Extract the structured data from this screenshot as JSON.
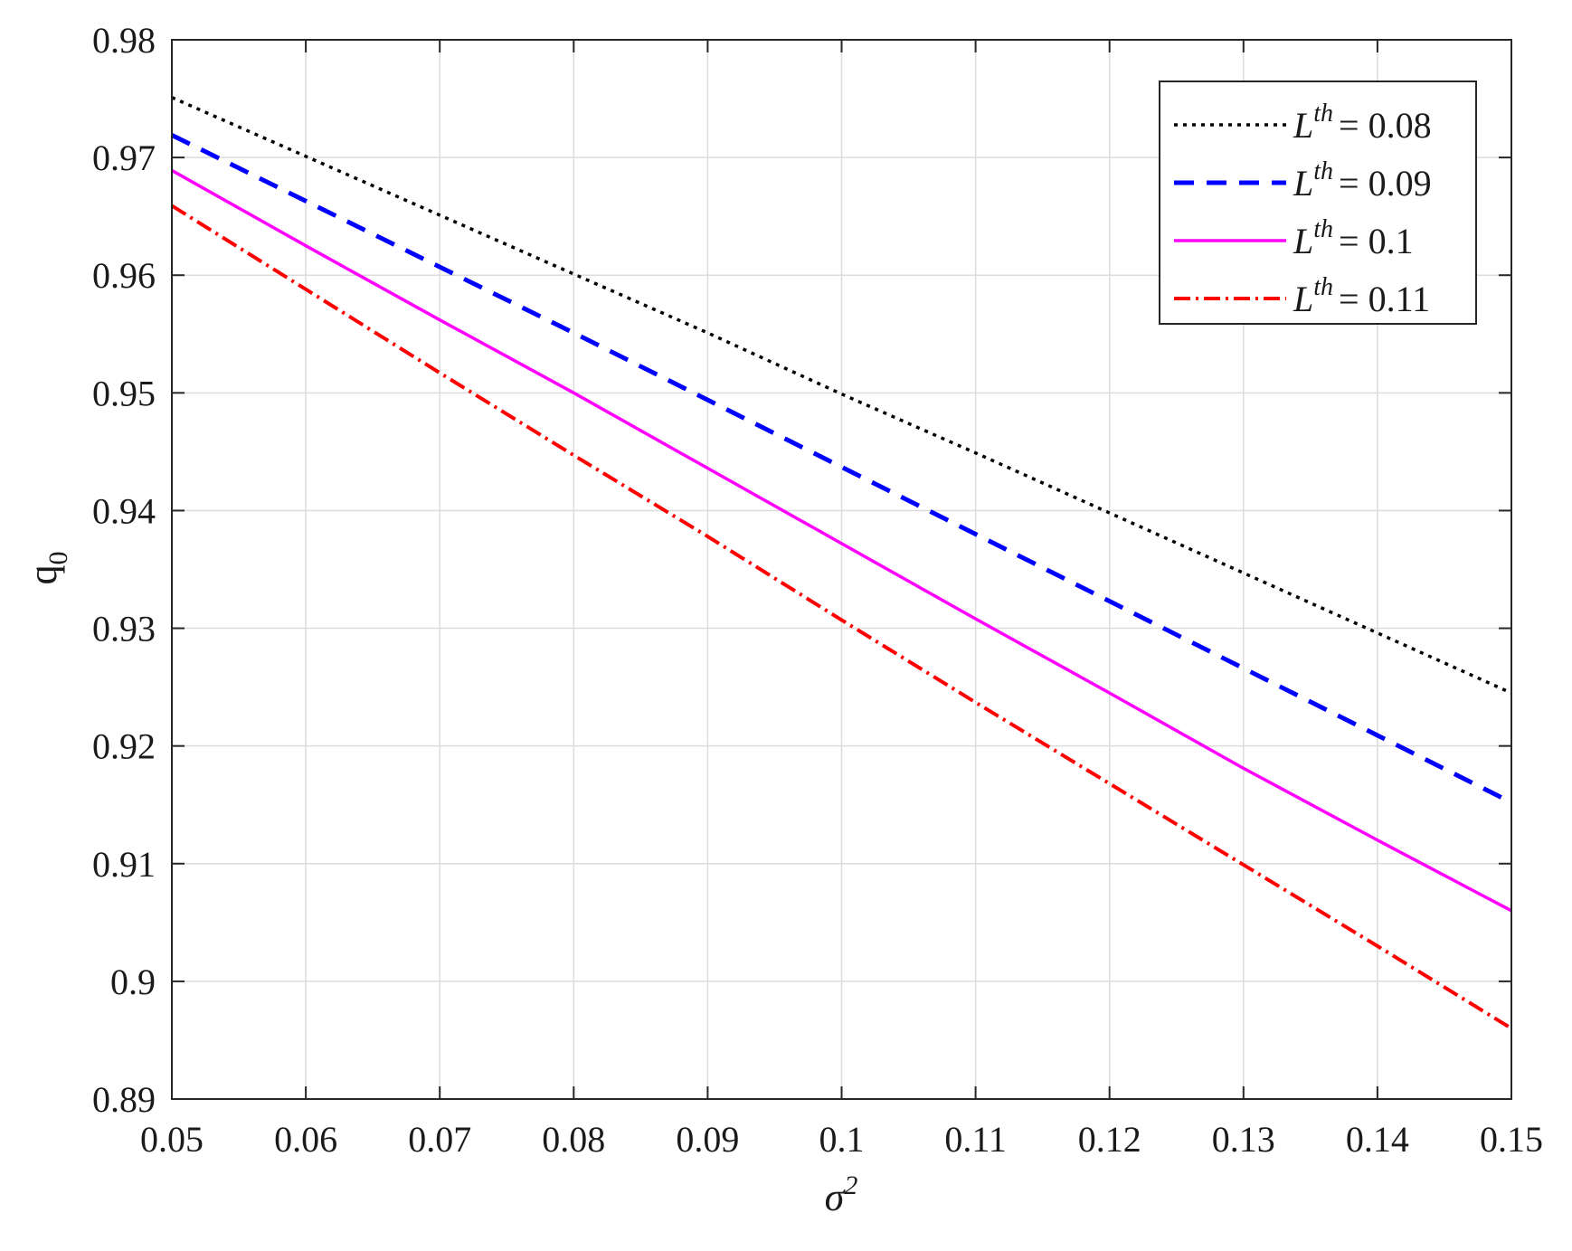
{
  "chart_data": {
    "type": "line",
    "xlabel": "σ",
    "xlabel_superscript": "2",
    "ylabel": "q",
    "ylabel_subscript": "0",
    "xlim": [
      0.05,
      0.15
    ],
    "ylim": [
      0.89,
      0.98
    ],
    "x_ticks": [
      "0.05",
      "0.06",
      "0.07",
      "0.08",
      "0.09",
      "0.1",
      "0.11",
      "0.12",
      "0.13",
      "0.14",
      "0.15"
    ],
    "y_ticks": [
      "0.89",
      "0.9",
      "0.91",
      "0.92",
      "0.93",
      "0.94",
      "0.95",
      "0.96",
      "0.97",
      "0.98"
    ],
    "grid": true,
    "legend_position": "top-right",
    "legend_var": "L",
    "legend_sup": "th",
    "x": [
      0.05,
      0.06,
      0.07,
      0.08,
      0.09,
      0.1,
      0.11,
      0.12,
      0.13,
      0.14,
      0.15
    ],
    "series": [
      {
        "name": "= 0.08",
        "color": "#000000",
        "style": "dotted",
        "values": [
          0.9751,
          0.9701,
          0.9651,
          0.9601,
          0.9551,
          0.9499,
          0.9449,
          0.9398,
          0.9347,
          0.9296,
          0.9245
        ]
      },
      {
        "name": "= 0.09",
        "color": "#0000ff",
        "style": "dashed",
        "values": [
          0.9719,
          0.9663,
          0.9607,
          0.9551,
          0.9494,
          0.9437,
          0.938,
          0.9323,
          0.9266,
          0.9209,
          0.9152
        ]
      },
      {
        "name": "= 0.1",
        "color": "#ff00ff",
        "style": "solid",
        "values": [
          0.9689,
          0.9625,
          0.9562,
          0.95,
          0.9436,
          0.9372,
          0.9308,
          0.9245,
          0.9181,
          0.912,
          0.906
        ]
      },
      {
        "name": "= 0.11",
        "color": "#ff0000",
        "style": "dashdot",
        "values": [
          0.9659,
          0.9588,
          0.9517,
          0.9447,
          0.9378,
          0.9307,
          0.9237,
          0.9168,
          0.9099,
          0.903,
          0.896
        ]
      }
    ]
  }
}
